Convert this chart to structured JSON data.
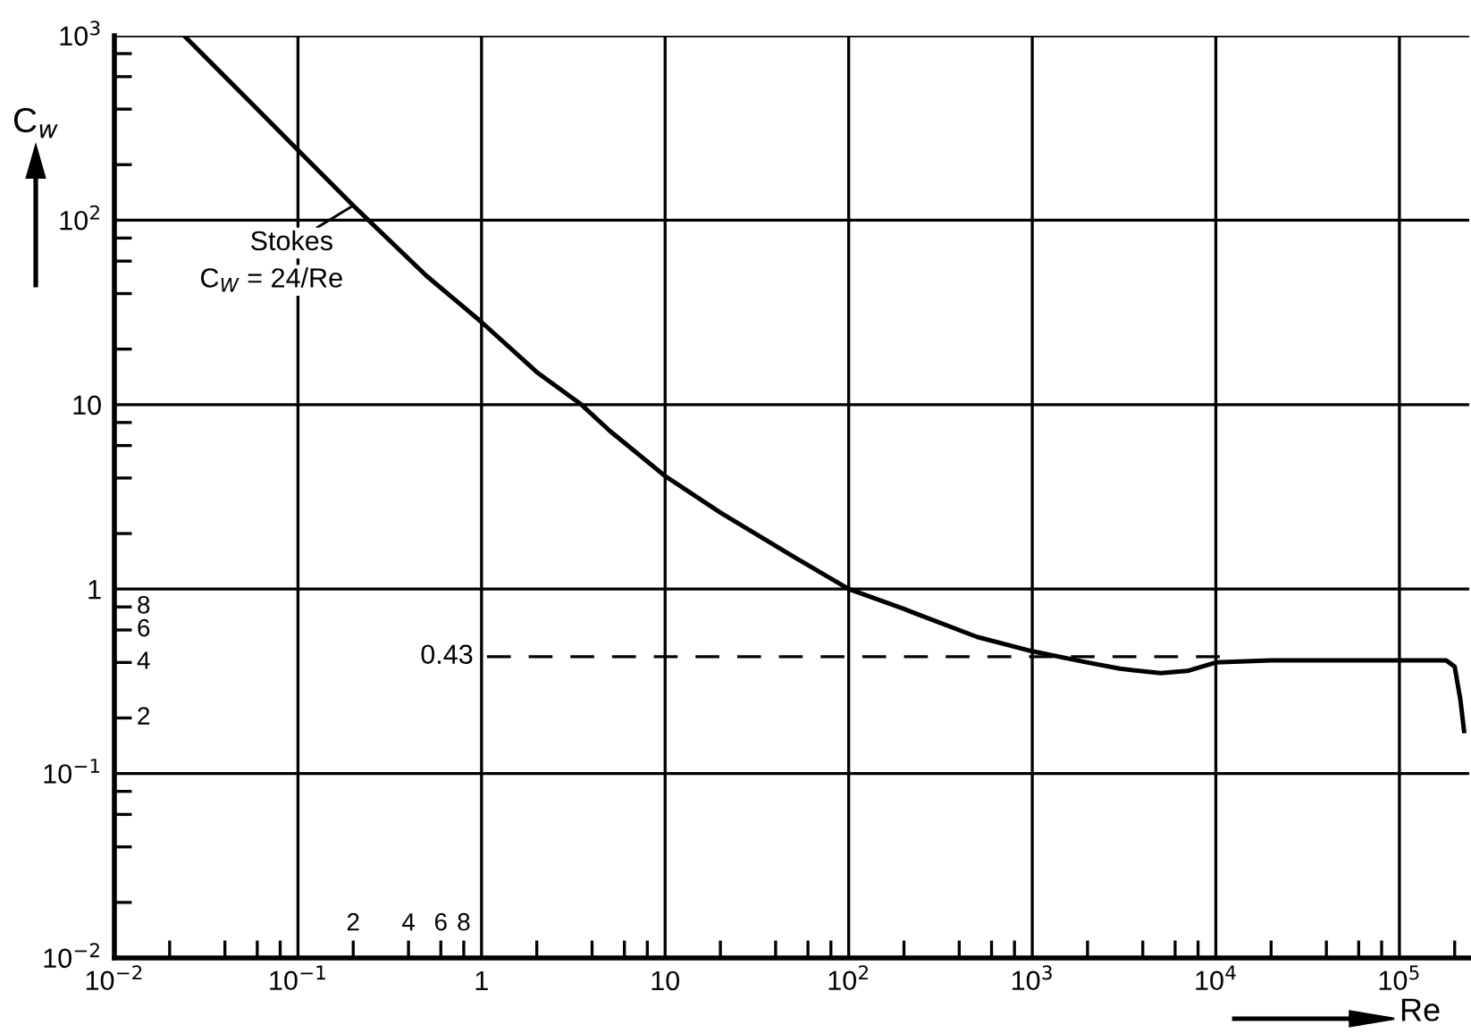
{
  "chart_data": {
    "type": "line",
    "xlabel": "Re",
    "ylabel": "C$_{w}$",
    "series": [
      {
        "color": "#000000",
        "x": [
          0.024,
          0.05,
          0.1,
          0.2,
          0.5,
          1,
          2,
          3.5,
          5,
          10,
          20,
          50,
          100,
          200,
          500,
          1000,
          2000,
          3000,
          5000,
          7000,
          10000,
          20000,
          50000,
          100000,
          180000,
          200000,
          215000,
          225000
        ],
        "values": [
          1000,
          480,
          240,
          120,
          50,
          28,
          15,
          10,
          7.2,
          4.1,
          2.6,
          1.5,
          1.0,
          0.78,
          0.55,
          0.46,
          0.4,
          0.37,
          0.35,
          0.36,
          0.4,
          0.41,
          0.41,
          0.41,
          0.41,
          0.38,
          0.25,
          0.17
        ]
      }
    ],
    "annotations": [
      {
        "text": "Stokes",
        "x": 0.2,
        "y": 120
      },
      {
        "text": "C$_{W}$ = 24/Re",
        "x": 0.2,
        "y": 120
      },
      "2",
      "4",
      "6",
      "8",
      "2",
      "4",
      "6",
      "8"
    ],
    "ref_lines": [
      {
        "axis": "y",
        "value": 0.43,
        "label": "0.43",
        "line_style": "dashed",
        "color": "#000000"
      }
    ],
    "log": "xy",
    "xlim": [
      0.01,
      240000
    ],
    "ylim": [
      0.01,
      1000
    ],
    "xticks": [
      {
        "value": 0.01,
        "label": "10$^{−2}$"
      },
      {
        "value": 0.02,
        "label": null
      },
      {
        "value": 0.04,
        "label": null
      },
      {
        "value": 0.06,
        "label": null
      },
      {
        "value": 0.08,
        "label": null
      },
      {
        "value": 0.1,
        "label": "10$^{−1}$"
      },
      {
        "value": 0.2,
        "label": null
      },
      {
        "value": 0.4,
        "label": null
      },
      {
        "value": 0.6,
        "label": null
      },
      {
        "value": 0.8,
        "label": null
      },
      1,
      {
        "value": 2,
        "label": null
      },
      {
        "value": 4,
        "label": null
      },
      {
        "value": 6,
        "label": null
      },
      {
        "value": 8,
        "label": null
      },
      10,
      {
        "value": 20,
        "label": null
      },
      {
        "value": 40,
        "label": null
      },
      {
        "value": 60,
        "label": null
      },
      {
        "value": 80,
        "label": null
      },
      {
        "value": 100,
        "label": "10$^{2}$"
      },
      {
        "value": 200,
        "label": null
      },
      {
        "value": 400,
        "label": null
      },
      {
        "value": 600,
        "label": null
      },
      {
        "value": 800,
        "label": null
      },
      {
        "value": 1000,
        "label": "10$^{3}$"
      },
      {
        "value": 2000,
        "label": null
      },
      {
        "value": 4000,
        "label": null
      },
      {
        "value": 6000,
        "label": null
      },
      {
        "value": 8000,
        "label": null
      },
      {
        "value": 10000,
        "label": "10$^{4}$"
      },
      {
        "value": 20000,
        "label": null
      },
      {
        "value": 40000,
        "label": null
      },
      {
        "value": 60000,
        "label": null
      },
      {
        "value": 80000,
        "label": null
      },
      {
        "value": 100000,
        "label": "10$^{5}$"
      },
      {
        "value": 200000,
        "label": null
      }
    ],
    "yticks": [
      {
        "value": 0.01,
        "label": "10$^{−2}$"
      },
      {
        "value": 0.02,
        "label": null
      },
      {
        "value": 0.04,
        "label": null
      },
      {
        "value": 0.06,
        "label": null
      },
      {
        "value": 0.08,
        "label": null
      },
      {
        "value": 0.1,
        "label": "10$^{−1}$"
      },
      {
        "value": 0.2,
        "label": null
      },
      {
        "value": 0.4,
        "label": null
      },
      {
        "value": 0.6,
        "label": null
      },
      {
        "value": 0.8,
        "label": null
      },
      1,
      {
        "value": 2,
        "label": null
      },
      {
        "value": 4,
        "label": null
      },
      {
        "value": 6,
        "label": null
      },
      {
        "value": 8,
        "label": null
      },
      10,
      {
        "value": 20,
        "label": null
      },
      {
        "value": 40,
        "label": null
      },
      {
        "value": 60,
        "label": null
      },
      {
        "value": 80,
        "label": null
      },
      {
        "value": 100,
        "label": "10$^{2}$"
      },
      {
        "value": 200,
        "label": null
      },
      {
        "value": 400,
        "label": null
      },
      {
        "value": 600,
        "label": null
      },
      {
        "value": 800,
        "label": null
      },
      {
        "value": 1000,
        "label": "10$^{3}$"
      }
    ],
    "grid": true,
    "marker": "none",
    "line_style": "solid"
  }
}
